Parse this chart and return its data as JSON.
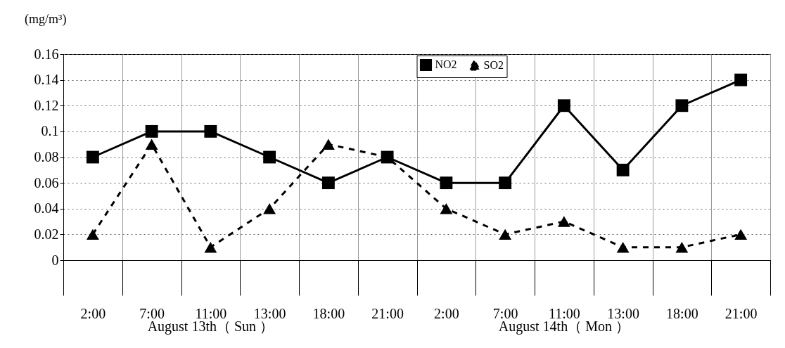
{
  "chart_data": {
    "type": "line",
    "ylabel": "(mg/m³)",
    "categories": [
      "2:00",
      "7:00",
      "11:00",
      "13:00",
      "18:00",
      "21:00",
      "2:00",
      "7:00",
      "11:00",
      "13:00",
      "18:00",
      "21:00"
    ],
    "series": [
      {
        "name": "NO2",
        "color": "#000000",
        "marker": "square",
        "line_style": "solid",
        "values": [
          0.08,
          0.1,
          0.1,
          0.08,
          0.06,
          0.08,
          0.06,
          0.06,
          0.12,
          0.07,
          0.12,
          0.14
        ]
      },
      {
        "name": "SO2",
        "color": "#000000",
        "marker": "triangle",
        "line_style": "dashed",
        "values": [
          0.02,
          0.09,
          0.01,
          0.04,
          0.09,
          0.08,
          0.04,
          0.02,
          0.03,
          0.01,
          0.01,
          0.02
        ]
      }
    ],
    "ylim": [
      0,
      0.16
    ],
    "yticks": [
      0,
      0.02,
      0.04,
      0.06,
      0.08,
      0.1,
      0.12,
      0.14,
      0.16
    ],
    "grid": true,
    "legend": "top right",
    "annotations": [
      "August 13th（ Sun ）",
      "August 14th（ Mon ）"
    ]
  }
}
